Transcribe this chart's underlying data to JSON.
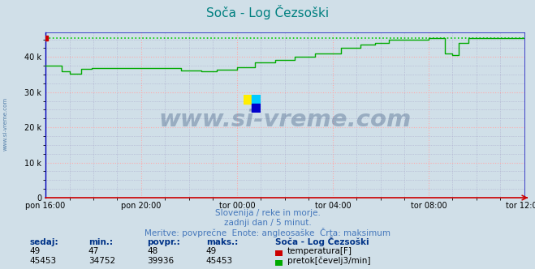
{
  "title": "Soča - Log Čezsoški",
  "title_color": "#008080",
  "bg_color": "#d0dfe8",
  "plot_bg_color": "#d0dfe8",
  "grid_color": "#ffaaaa",
  "grid_color2": "#aaaacc",
  "axis_color": "#0000bb",
  "xlabel_ticks": [
    "pon 16:00",
    "pon 20:00",
    "tor 00:00",
    "tor 04:00",
    "tor 08:00",
    "tor 12:00"
  ],
  "ylim": [
    0,
    47000
  ],
  "yticks": [
    0,
    10000,
    20000,
    30000,
    40000
  ],
  "ytick_labels": [
    "0",
    "10 k",
    "20 k",
    "30 k",
    "40 k"
  ],
  "n_points": 241,
  "temp_value": 49,
  "temp_min": 47,
  "temp_avg": 48,
  "temp_max": 49,
  "flow_sedaj": 45453,
  "flow_min": 34752,
  "flow_avg": 39936,
  "flow_max": 45453,
  "temp_color": "#cc0000",
  "flow_color": "#00aa00",
  "max_line_color": "#00cc00",
  "watermark_color": "#1a3a6a",
  "watermark_alpha": 0.3,
  "sub_text1": "Slovenija / reke in morje.",
  "sub_text2": "zadnji dan / 5 minut.",
  "sub_text3": "Meritve: povprečne  Enote: angleosaške  Črta: maksimum",
  "sub_text_color": "#4477bb",
  "legend_title": "Soča - Log Čezsoški",
  "legend_title_color": "#003388",
  "left_label": "www.si-vreme.com",
  "left_label_color": "#336699"
}
